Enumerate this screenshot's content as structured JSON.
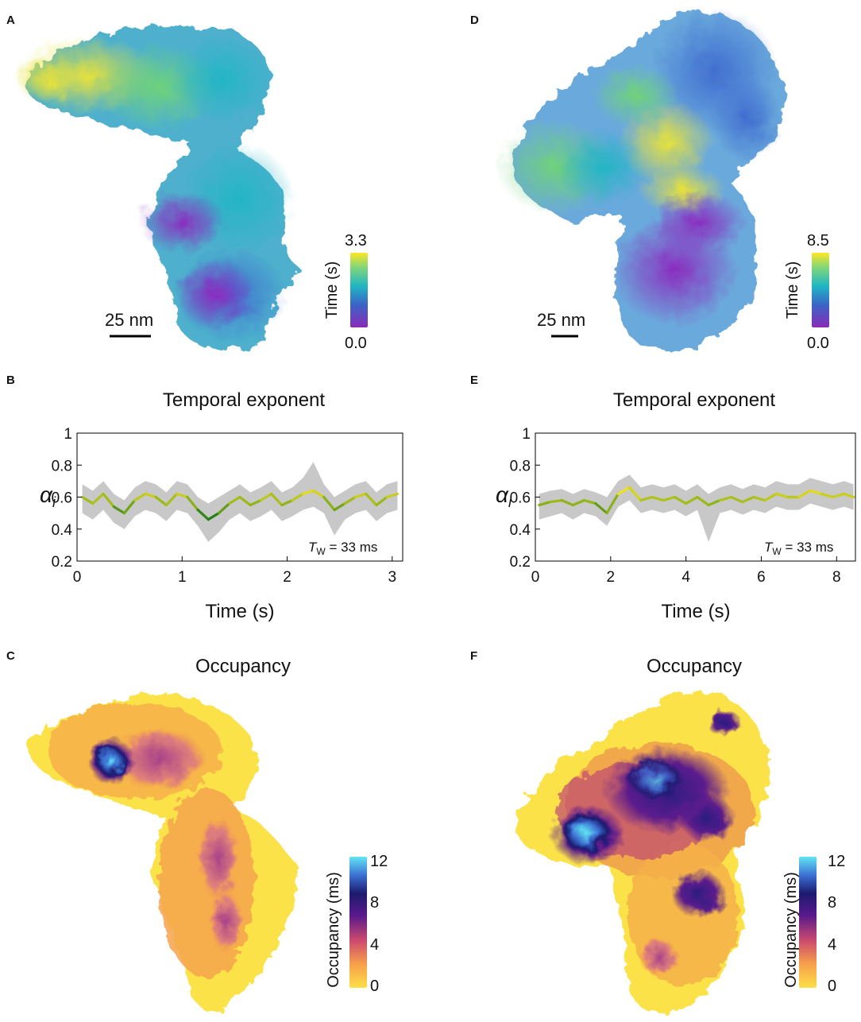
{
  "panels": {
    "A": {
      "label": "A",
      "scale_bar": "25 nm",
      "colorbar": {
        "label": "Time (s)",
        "max": "3.3",
        "min": "0.0",
        "colormap": "viridis"
      }
    },
    "D": {
      "label": "D",
      "scale_bar": "25 nm",
      "colorbar": {
        "label": "Time (s)",
        "max": "8.5",
        "min": "0.0",
        "colormap": "viridis"
      }
    },
    "B": {
      "label": "B",
      "title": "Temporal exponent",
      "ylabel": "α",
      "ylabel_sub": "i",
      "xlabel": "Time (s)",
      "annotation_T": "T",
      "annotation_sub": "W",
      "annotation_val": " = 33 ms",
      "xticks": [
        "0",
        "1",
        "2",
        "3"
      ],
      "yticks": [
        "0.2",
        "0.4",
        "0.6",
        "0.8",
        "1"
      ]
    },
    "E": {
      "label": "E",
      "title": "Temporal exponent",
      "ylabel": "α",
      "ylabel_sub": "i",
      "xlabel": "Time (s)",
      "annotation_T": "T",
      "annotation_sub": "W",
      "annotation_val": " = 33 ms",
      "xticks": [
        "0",
        "2",
        "4",
        "6",
        "8"
      ],
      "yticks": [
        "0.2",
        "0.4",
        "0.6",
        "0.8",
        "1"
      ]
    },
    "C": {
      "label": "C",
      "title": "Occupancy",
      "colorbar": {
        "label": "Occupancy (ms)",
        "ticks": [
          "12",
          "8",
          "4",
          "0"
        ]
      }
    },
    "F": {
      "label": "F",
      "title": "Occupancy",
      "colorbar": {
        "label": "Occupancy (ms)",
        "ticks": [
          "12",
          "8",
          "4",
          "0"
        ]
      }
    }
  },
  "colors": {
    "viridis": [
      "#440154",
      "#3b528b",
      "#21918c",
      "#5ec962",
      "#fde725"
    ],
    "occupancy": [
      "#fde047",
      "#f59e42",
      "#c2406f",
      "#5b1a8a",
      "#1b1464",
      "#3b6fd0",
      "#5ee0f0"
    ],
    "trace_gray": "#c8c8c8"
  },
  "chart_data": [
    {
      "type": "line",
      "panel": "B",
      "title": "Temporal exponent",
      "xlabel": "Time (s)",
      "ylabel": "α_i",
      "xlim": [
        0,
        3.1
      ],
      "ylim": [
        0.2,
        1.0
      ],
      "annotation": "T_W = 33 ms",
      "x": [
        0.05,
        0.15,
        0.25,
        0.35,
        0.45,
        0.55,
        0.65,
        0.75,
        0.85,
        0.95,
        1.05,
        1.15,
        1.25,
        1.35,
        1.45,
        1.55,
        1.65,
        1.75,
        1.85,
        1.95,
        2.05,
        2.15,
        2.25,
        2.35,
        2.45,
        2.55,
        2.65,
        2.75,
        2.85,
        2.95,
        3.05
      ],
      "series": [
        {
          "name": "mean",
          "values": [
            0.6,
            0.56,
            0.62,
            0.54,
            0.5,
            0.58,
            0.62,
            0.6,
            0.55,
            0.62,
            0.6,
            0.52,
            0.46,
            0.5,
            0.56,
            0.6,
            0.55,
            0.58,
            0.62,
            0.55,
            0.58,
            0.62,
            0.64,
            0.6,
            0.52,
            0.56,
            0.6,
            0.62,
            0.55,
            0.6,
            0.62
          ]
        },
        {
          "name": "upper",
          "values": [
            0.68,
            0.64,
            0.7,
            0.62,
            0.58,
            0.66,
            0.7,
            0.68,
            0.63,
            0.7,
            0.68,
            0.6,
            0.56,
            0.6,
            0.64,
            0.68,
            0.63,
            0.66,
            0.7,
            0.63,
            0.66,
            0.72,
            0.82,
            0.68,
            0.6,
            0.64,
            0.68,
            0.7,
            0.63,
            0.68,
            0.7
          ]
        },
        {
          "name": "lower",
          "values": [
            0.5,
            0.46,
            0.52,
            0.44,
            0.4,
            0.48,
            0.52,
            0.5,
            0.45,
            0.52,
            0.5,
            0.42,
            0.32,
            0.38,
            0.46,
            0.5,
            0.45,
            0.48,
            0.52,
            0.45,
            0.48,
            0.52,
            0.54,
            0.5,
            0.36,
            0.46,
            0.5,
            0.52,
            0.45,
            0.5,
            0.52
          ]
        }
      ]
    },
    {
      "type": "line",
      "panel": "E",
      "title": "Temporal exponent",
      "xlabel": "Time (s)",
      "ylabel": "α_i",
      "xlim": [
        0,
        8.5
      ],
      "ylim": [
        0.2,
        1.0
      ],
      "annotation": "T_W = 33 ms",
      "x": [
        0.1,
        0.4,
        0.7,
        1.0,
        1.3,
        1.6,
        1.9,
        2.2,
        2.5,
        2.8,
        3.1,
        3.4,
        3.7,
        4.0,
        4.3,
        4.6,
        4.9,
        5.2,
        5.5,
        5.8,
        6.1,
        6.4,
        6.7,
        7.0,
        7.3,
        7.6,
        7.9,
        8.2,
        8.45
      ],
      "series": [
        {
          "name": "mean",
          "values": [
            0.55,
            0.57,
            0.58,
            0.55,
            0.58,
            0.56,
            0.5,
            0.62,
            0.66,
            0.58,
            0.6,
            0.58,
            0.6,
            0.56,
            0.6,
            0.55,
            0.58,
            0.6,
            0.57,
            0.6,
            0.58,
            0.62,
            0.6,
            0.6,
            0.64,
            0.62,
            0.6,
            0.62,
            0.6
          ]
        },
        {
          "name": "upper",
          "values": [
            0.62,
            0.64,
            0.65,
            0.62,
            0.65,
            0.63,
            0.6,
            0.7,
            0.74,
            0.66,
            0.68,
            0.66,
            0.68,
            0.64,
            0.68,
            0.62,
            0.66,
            0.68,
            0.65,
            0.68,
            0.66,
            0.7,
            0.68,
            0.68,
            0.72,
            0.7,
            0.68,
            0.7,
            0.68
          ]
        },
        {
          "name": "lower",
          "values": [
            0.46,
            0.48,
            0.5,
            0.46,
            0.5,
            0.48,
            0.42,
            0.54,
            0.58,
            0.5,
            0.52,
            0.5,
            0.52,
            0.48,
            0.52,
            0.32,
            0.5,
            0.52,
            0.49,
            0.52,
            0.5,
            0.54,
            0.52,
            0.52,
            0.56,
            0.54,
            0.52,
            0.54,
            0.52
          ]
        }
      ]
    }
  ]
}
